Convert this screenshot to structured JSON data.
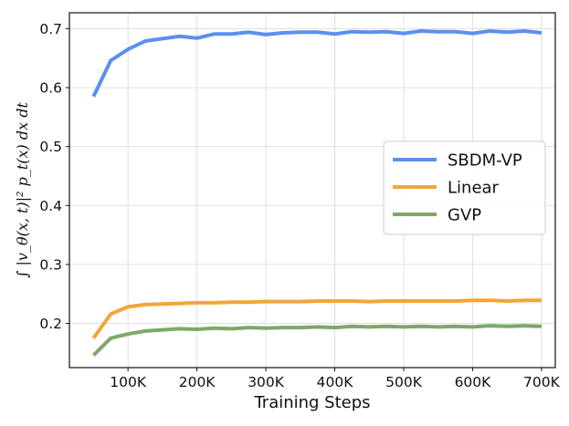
{
  "chart_data": {
    "type": "line",
    "xlabel": "Training Steps",
    "ylabel": "∫ |v_θ(x, t)|² p_t(x) dx dt",
    "x": [
      50000,
      75000,
      100000,
      125000,
      150000,
      175000,
      200000,
      225000,
      250000,
      275000,
      300000,
      325000,
      350000,
      375000,
      400000,
      425000,
      450000,
      475000,
      500000,
      525000,
      550000,
      575000,
      600000,
      625000,
      650000,
      675000,
      700000
    ],
    "xticks": [
      100000,
      200000,
      300000,
      400000,
      500000,
      600000,
      700000
    ],
    "xtick_labels": [
      "100K",
      "200K",
      "300K",
      "400K",
      "500K",
      "600K",
      "700K"
    ],
    "xlim": [
      15000,
      720000
    ],
    "yticks": [
      0.2,
      0.3,
      0.4,
      0.5,
      0.6,
      0.7
    ],
    "ytick_labels": [
      "0.2",
      "0.3",
      "0.4",
      "0.5",
      "0.6",
      "0.7"
    ],
    "ylim": [
      0.125,
      0.727
    ],
    "grid": true,
    "legend_position": "right",
    "series": [
      {
        "name": "SBDM-VP",
        "color": "#5b8ff0",
        "values": [
          0.585,
          0.646,
          0.665,
          0.679,
          0.683,
          0.687,
          0.684,
          0.691,
          0.691,
          0.694,
          0.69,
          0.693,
          0.694,
          0.694,
          0.691,
          0.695,
          0.694,
          0.695,
          0.692,
          0.696,
          0.695,
          0.695,
          0.692,
          0.696,
          0.694,
          0.696,
          0.693
        ]
      },
      {
        "name": "Linear",
        "color": "#f2a53a",
        "values": [
          0.175,
          0.216,
          0.228,
          0.232,
          0.233,
          0.234,
          0.235,
          0.235,
          0.236,
          0.236,
          0.237,
          0.237,
          0.237,
          0.238,
          0.238,
          0.238,
          0.237,
          0.238,
          0.238,
          0.238,
          0.238,
          0.238,
          0.239,
          0.239,
          0.238,
          0.239,
          0.239
        ]
      },
      {
        "name": "GVP",
        "color": "#7da869",
        "values": [
          0.146,
          0.175,
          0.182,
          0.187,
          0.189,
          0.191,
          0.19,
          0.192,
          0.191,
          0.193,
          0.192,
          0.193,
          0.193,
          0.194,
          0.193,
          0.195,
          0.194,
          0.195,
          0.194,
          0.195,
          0.194,
          0.195,
          0.194,
          0.196,
          0.195,
          0.196,
          0.195
        ]
      }
    ]
  }
}
